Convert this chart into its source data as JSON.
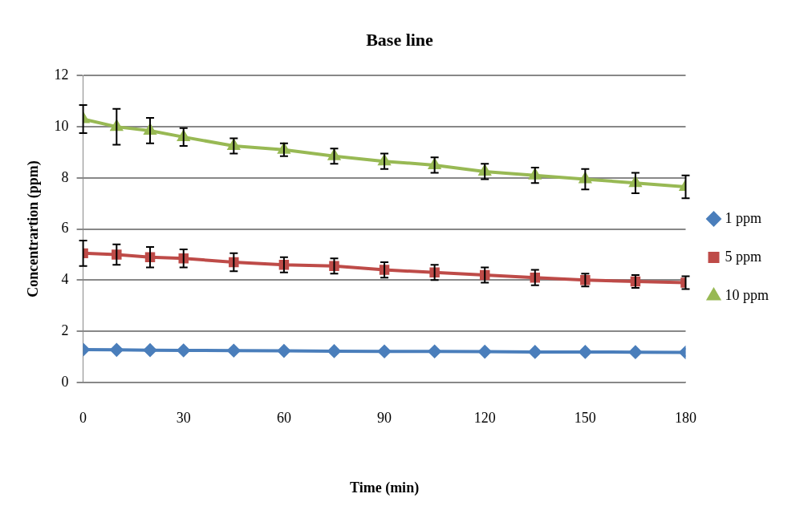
{
  "chart_data": {
    "type": "line",
    "title": "Base line",
    "xlabel": "Time (min)",
    "ylabel": "Concentrartion (ppm)",
    "x": [
      0,
      10,
      20,
      30,
      45,
      60,
      75,
      90,
      105,
      120,
      135,
      150,
      165,
      180
    ],
    "xlim": [
      0,
      180
    ],
    "xticks": [
      0,
      30,
      60,
      90,
      120,
      150,
      180
    ],
    "ylim": [
      0,
      12
    ],
    "yticks": [
      0,
      2,
      4,
      6,
      8,
      10,
      12
    ],
    "grid": "y",
    "legend": "right",
    "series": [
      {
        "name": "1 ppm",
        "color": "#4a7ebb",
        "marker": "diamond",
        "values": [
          1.28,
          1.27,
          1.26,
          1.25,
          1.24,
          1.23,
          1.22,
          1.21,
          1.21,
          1.2,
          1.19,
          1.19,
          1.18,
          1.17
        ]
      },
      {
        "name": "5 ppm",
        "color": "#be4b48",
        "marker": "square",
        "values": [
          5.05,
          5.0,
          4.9,
          4.85,
          4.7,
          4.6,
          4.55,
          4.4,
          4.3,
          4.2,
          4.1,
          4.0,
          3.95,
          3.9
        ],
        "errors": [
          0.5,
          0.4,
          0.4,
          0.35,
          0.35,
          0.3,
          0.3,
          0.3,
          0.3,
          0.3,
          0.3,
          0.25,
          0.25,
          0.25
        ]
      },
      {
        "name": "10 ppm",
        "color": "#98b954",
        "marker": "triangle",
        "values": [
          10.3,
          10.0,
          9.85,
          9.6,
          9.25,
          9.1,
          8.85,
          8.65,
          8.5,
          8.25,
          8.1,
          7.95,
          7.8,
          7.65
        ],
        "errors": [
          0.55,
          0.7,
          0.5,
          0.35,
          0.3,
          0.25,
          0.3,
          0.3,
          0.3,
          0.3,
          0.3,
          0.4,
          0.4,
          0.45
        ]
      }
    ]
  }
}
